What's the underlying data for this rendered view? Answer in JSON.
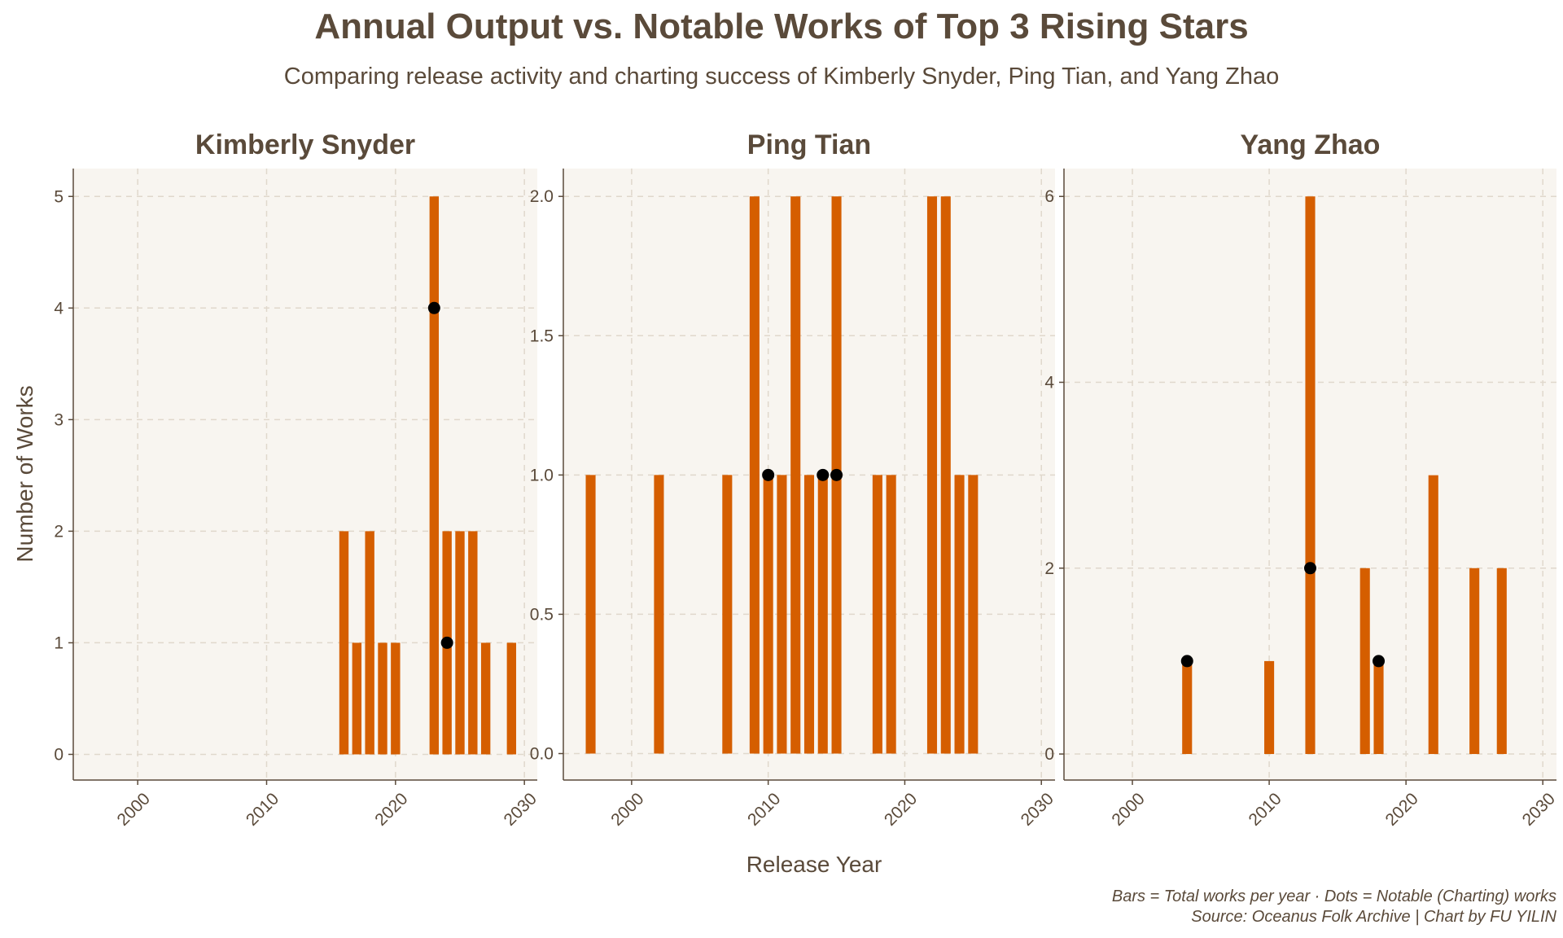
{
  "title": "Annual Output vs. Notable Works of Top 3 Rising Stars",
  "subtitle": "Comparing release activity and charting success of Kimberly Snyder, Ping Tian, and Yang Zhao",
  "caption": {
    "line1": "Bars = Total works per year · Dots = Notable (Charting) works",
    "line2": "Source: Oceanus Folk Archive | Chart by FU YILIN"
  },
  "colors": {
    "panel_bg": "#f8f5f0",
    "bar": "#d55e00",
    "dot": "#000000",
    "grid": "#e0d8cc",
    "text": "#5a4a3a",
    "axis": "#5a4a3a"
  },
  "chart_data": {
    "type": "bar",
    "xlabel": "Release Year",
    "ylabel": "Number of Works",
    "xlim": [
      1995,
      2031
    ],
    "x_ticks": [
      2000,
      2010,
      2020,
      2030
    ],
    "panels": [
      {
        "title": "Kimberly Snyder",
        "ylim": [
          -0.23,
          5.25
        ],
        "y_ticks": [
          0,
          1,
          2,
          3,
          4,
          5
        ],
        "y_tick_labels": [
          "0",
          "1",
          "2",
          "3",
          "4",
          "5"
        ],
        "bars": [
          {
            "year": 2016,
            "total": 2
          },
          {
            "year": 2017,
            "total": 1
          },
          {
            "year": 2018,
            "total": 2
          },
          {
            "year": 2019,
            "total": 1
          },
          {
            "year": 2020,
            "total": 1
          },
          {
            "year": 2023,
            "total": 5
          },
          {
            "year": 2024,
            "total": 2
          },
          {
            "year": 2025,
            "total": 2
          },
          {
            "year": 2026,
            "total": 2
          },
          {
            "year": 2027,
            "total": 1
          },
          {
            "year": 2029,
            "total": 1
          }
        ],
        "notable": [
          {
            "year": 2023,
            "count": 4
          },
          {
            "year": 2024,
            "count": 1
          }
        ]
      },
      {
        "title": "Ping Tian",
        "ylim": [
          -0.095,
          2.1
        ],
        "y_ticks": [
          0,
          0.5,
          1,
          1.5,
          2
        ],
        "y_tick_labels": [
          "0.0",
          "0.5",
          "1.0",
          "1.5",
          "2.0"
        ],
        "bars": [
          {
            "year": 1997,
            "total": 1
          },
          {
            "year": 2002,
            "total": 1
          },
          {
            "year": 2007,
            "total": 1
          },
          {
            "year": 2009,
            "total": 2
          },
          {
            "year": 2010,
            "total": 1
          },
          {
            "year": 2011,
            "total": 1
          },
          {
            "year": 2012,
            "total": 2
          },
          {
            "year": 2013,
            "total": 1
          },
          {
            "year": 2014,
            "total": 1
          },
          {
            "year": 2015,
            "total": 2
          },
          {
            "year": 2018,
            "total": 1
          },
          {
            "year": 2019,
            "total": 1
          },
          {
            "year": 2022,
            "total": 2
          },
          {
            "year": 2023,
            "total": 2
          },
          {
            "year": 2024,
            "total": 1
          },
          {
            "year": 2025,
            "total": 1
          }
        ],
        "notable": [
          {
            "year": 2010,
            "count": 1
          },
          {
            "year": 2014,
            "count": 1
          },
          {
            "year": 2015,
            "count": 1
          }
        ]
      },
      {
        "title": "Yang Zhao",
        "ylim": [
          -0.28,
          6.3
        ],
        "y_ticks": [
          0,
          2,
          4,
          6
        ],
        "y_tick_labels": [
          "0",
          "2",
          "4",
          "6"
        ],
        "bars": [
          {
            "year": 2004,
            "total": 1
          },
          {
            "year": 2010,
            "total": 1
          },
          {
            "year": 2013,
            "total": 6
          },
          {
            "year": 2017,
            "total": 2
          },
          {
            "year": 2018,
            "total": 1
          },
          {
            "year": 2022,
            "total": 3
          },
          {
            "year": 2025,
            "total": 2
          },
          {
            "year": 2027,
            "total": 2
          }
        ],
        "notable": [
          {
            "year": 2004,
            "count": 1
          },
          {
            "year": 2013,
            "count": 2
          },
          {
            "year": 2018,
            "count": 1
          }
        ]
      }
    ]
  }
}
